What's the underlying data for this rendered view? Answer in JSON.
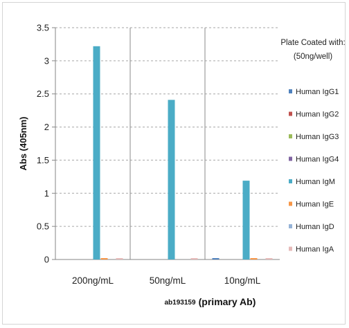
{
  "chart_data": {
    "type": "bar",
    "title": "",
    "xlabel": "(primary Ab)",
    "x_note": "ab193159",
    "ylabel": "Abs (405nm)",
    "ylim": [
      0,
      3.5
    ],
    "yticks": [
      0,
      0.5,
      1,
      1.5,
      2,
      2.5,
      3,
      3.5
    ],
    "ytick_labels": [
      "0",
      "0.5",
      "1",
      "1.5",
      "2",
      "2.5",
      "3",
      "3.5"
    ],
    "categories": [
      "200ng/mL",
      "50ng/mL",
      "10ng/mL"
    ],
    "grid": "horizontal dashed",
    "legend": {
      "title_lines": [
        "Plate Coated with:",
        "(50ng/well)"
      ],
      "placement": "right"
    },
    "series": [
      {
        "name": "Human IgG1",
        "color": "#4f81bd",
        "values": [
          0.0,
          0.0,
          0.02
        ]
      },
      {
        "name": "Human IgG2",
        "color": "#c0504d",
        "values": [
          0.0,
          0.0,
          0.0
        ]
      },
      {
        "name": "Human IgG3",
        "color": "#9bbb59",
        "values": [
          0.0,
          0.0,
          0.0
        ]
      },
      {
        "name": "Human IgG4",
        "color": "#8064a2",
        "values": [
          0.0,
          0.0,
          0.0
        ]
      },
      {
        "name": "Human IgM",
        "color": "#4bacc6",
        "values": [
          3.22,
          2.41,
          1.19
        ]
      },
      {
        "name": "Human IgE",
        "color": "#f79646",
        "values": [
          0.02,
          0.0,
          0.02
        ]
      },
      {
        "name": "Human IgD",
        "color": "#95b3d7",
        "values": [
          0.0,
          0.0,
          0.0
        ]
      },
      {
        "name": "Human IgA",
        "color": "#e6b9b8",
        "values": [
          0.02,
          0.02,
          0.02
        ]
      }
    ]
  }
}
